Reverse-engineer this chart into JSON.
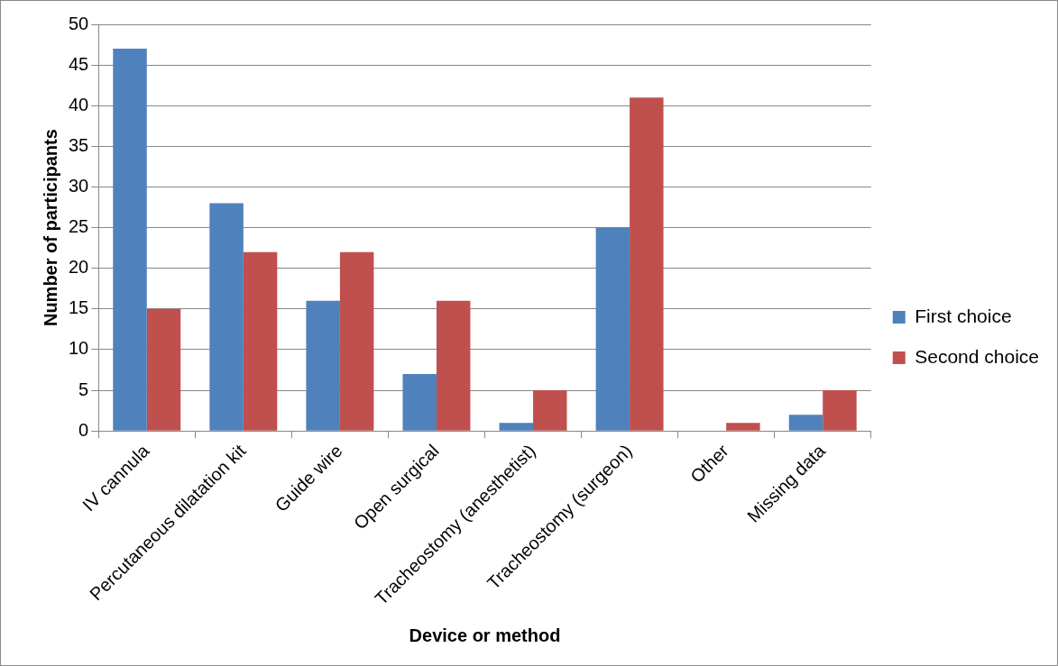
{
  "chart_data": {
    "type": "bar",
    "xlabel": "Device or method",
    "ylabel": "Number of participants",
    "categories": [
      "IV cannula",
      "Percutaneous dilatation kit",
      "Guide wire",
      "Open surgical",
      "Tracheostomy (anesthetist)",
      "Tracheostomy (surgeon)",
      "Other",
      "Missing data"
    ],
    "series": [
      {
        "name": "First choice",
        "color": "#4f81bd",
        "values": [
          47,
          28,
          16,
          7,
          1,
          25,
          0,
          2
        ]
      },
      {
        "name": "Second choice",
        "color": "#c0504d",
        "values": [
          15,
          22,
          22,
          16,
          5,
          41,
          1,
          5
        ]
      }
    ],
    "ylim": [
      0,
      50
    ],
    "yticks": [
      0,
      5,
      10,
      15,
      20,
      25,
      30,
      35,
      40,
      45,
      50
    ],
    "grid": "y",
    "legend": "right"
  }
}
